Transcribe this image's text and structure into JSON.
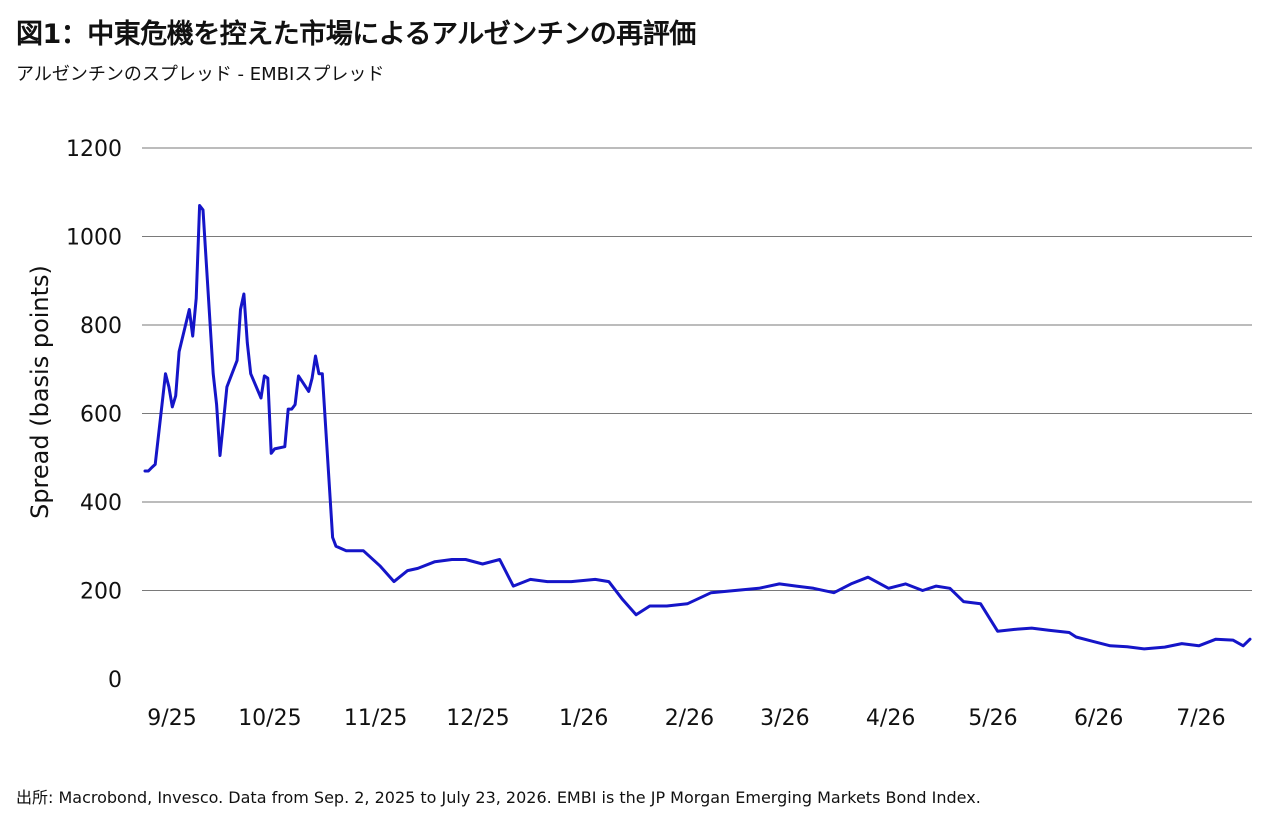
{
  "header": {
    "title": "図1：中東危機を控えた市場によるアルゼンチンの再評価",
    "subtitle": "アルゼンチンのスプレッド - EMBIスプレッド"
  },
  "footer": {
    "source": "出所: Macrobond, Invesco. Data from Sep. 2, 2025 to July 23, 2026. EMBI is the JP Morgan Emerging Markets Bond Index."
  },
  "colors": {
    "line": "#1515c8",
    "grid": "#7a7a7a"
  },
  "chart_data": {
    "type": "line",
    "title": "図1：中東危機を控えた市場によるアルゼンチンの再評価",
    "subtitle": "アルゼンチンのスプレッド - EMBIスプレッド",
    "xlabel": "",
    "ylabel": "Spread (basis points)",
    "ylim": [
      0,
      1200
    ],
    "yticks": [
      0,
      200,
      400,
      600,
      800,
      1000,
      1200
    ],
    "grid": "horizontal",
    "x_tick_labels": [
      "9/25",
      "10/25",
      "11/25",
      "12/25",
      "1/26",
      "2/26",
      "3/26",
      "4/26",
      "5/26",
      "6/26",
      "7/26"
    ],
    "series": [
      {
        "name": "",
        "x": [
          "2025-09-02",
          "2025-09-03",
          "2025-09-04",
          "2025-09-05",
          "2025-09-08",
          "2025-09-09",
          "2025-09-10",
          "2025-09-11",
          "2025-09-12",
          "2025-09-15",
          "2025-09-16",
          "2025-09-17",
          "2025-09-18",
          "2025-09-19",
          "2025-09-22",
          "2025-09-23",
          "2025-09-24",
          "2025-09-25",
          "2025-09-26",
          "2025-09-29",
          "2025-09-30",
          "2025-10-01",
          "2025-10-02",
          "2025-10-03",
          "2025-10-06",
          "2025-10-07",
          "2025-10-08",
          "2025-10-09",
          "2025-10-10",
          "2025-10-13",
          "2025-10-14",
          "2025-10-15",
          "2025-10-16",
          "2025-10-17",
          "2025-10-20",
          "2025-10-21",
          "2025-10-22",
          "2025-10-23",
          "2025-10-24",
          "2025-10-27",
          "2025-10-28",
          "2025-10-31",
          "2025-11-05",
          "2025-11-10",
          "2025-11-14",
          "2025-11-18",
          "2025-11-21",
          "2025-11-26",
          "2025-12-01",
          "2025-12-05",
          "2025-12-10",
          "2025-12-15",
          "2025-12-19",
          "2025-12-24",
          "2025-12-29",
          "2026-01-05",
          "2026-01-12",
          "2026-01-16",
          "2026-01-20",
          "2026-01-24",
          "2026-01-28",
          "2026-02-02",
          "2026-02-08",
          "2026-02-15",
          "2026-02-22",
          "2026-03-01",
          "2026-03-07",
          "2026-03-12",
          "2026-03-17",
          "2026-03-23",
          "2026-03-28",
          "2026-04-02",
          "2026-04-08",
          "2026-04-13",
          "2026-04-18",
          "2026-04-22",
          "2026-04-26",
          "2026-04-30",
          "2026-05-05",
          "2026-05-10",
          "2026-05-15",
          "2026-05-20",
          "2026-05-25",
          "2026-05-31",
          "2026-06-02",
          "2026-06-07",
          "2026-06-12",
          "2026-06-17",
          "2026-06-22",
          "2026-06-28",
          "2026-07-03",
          "2026-07-08",
          "2026-07-13",
          "2026-07-18",
          "2026-07-21",
          "2026-07-23"
        ],
        "values": [
          470,
          470,
          478,
          485,
          690,
          660,
          615,
          640,
          740,
          835,
          775,
          860,
          1070,
          1060,
          690,
          620,
          505,
          580,
          660,
          720,
          835,
          870,
          760,
          690,
          635,
          685,
          680,
          510,
          520,
          525,
          610,
          610,
          620,
          685,
          650,
          680,
          730,
          690,
          690,
          320,
          300,
          290,
          290,
          255,
          220,
          245,
          250,
          265,
          270,
          270,
          260,
          270,
          210,
          225,
          220,
          220,
          225,
          220,
          180,
          145,
          165,
          165,
          170,
          195,
          200,
          205,
          215,
          210,
          205,
          195,
          215,
          230,
          205,
          215,
          200,
          210,
          205,
          175,
          170,
          108,
          112,
          115,
          110,
          105,
          95,
          85,
          75,
          73,
          68,
          72,
          80,
          75,
          90,
          88,
          75,
          90
        ]
      }
    ]
  }
}
